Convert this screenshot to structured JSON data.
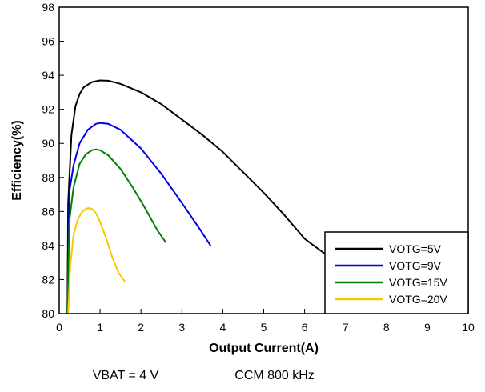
{
  "chart_data": {
    "type": "line",
    "xlabel": "Output Current(A)",
    "ylabel": "Efficiency(%)",
    "xlim": [
      0,
      10
    ],
    "ylim": [
      80,
      98
    ],
    "xticks": [
      "0",
      "1",
      "2",
      "3",
      "4",
      "5",
      "6",
      "7",
      "8",
      "9",
      "10"
    ],
    "yticks": [
      "80",
      "82",
      "84",
      "86",
      "88",
      "90",
      "92",
      "94",
      "96",
      "98"
    ],
    "grid": false,
    "legend_position": "bottom-right",
    "captions": [
      "VBAT = 4 V",
      "CCM 800 kHz"
    ],
    "series": [
      {
        "name": "VOTG=5V",
        "color": "#000000",
        "x": [
          0.2,
          0.22,
          0.3,
          0.4,
          0.5,
          0.6,
          0.8,
          1.0,
          1.2,
          1.5,
          2.0,
          2.5,
          3.0,
          3.5,
          4.0,
          4.5,
          5.0,
          5.5,
          6.0,
          6.5
        ],
        "y": [
          80,
          86.5,
          90.5,
          92.2,
          92.9,
          93.3,
          93.6,
          93.7,
          93.68,
          93.5,
          93.0,
          92.3,
          91.4,
          90.5,
          89.5,
          88.3,
          87.1,
          85.8,
          84.4,
          83.5
        ]
      },
      {
        "name": "VOTG=9V",
        "color": "#0000e6",
        "x": [
          0.2,
          0.25,
          0.35,
          0.5,
          0.7,
          0.9,
          1.0,
          1.2,
          1.5,
          2.0,
          2.5,
          3.0,
          3.4,
          3.7
        ],
        "y": [
          80,
          87.2,
          88.7,
          90.0,
          90.8,
          91.15,
          91.2,
          91.15,
          90.8,
          89.7,
          88.2,
          86.5,
          85.1,
          84.0
        ]
      },
      {
        "name": "VOTG=15V",
        "color": "#008000",
        "x": [
          0.2,
          0.25,
          0.35,
          0.5,
          0.65,
          0.8,
          0.9,
          1.0,
          1.2,
          1.5,
          1.8,
          2.1,
          2.4,
          2.6
        ],
        "y": [
          80,
          85.5,
          87.4,
          88.8,
          89.35,
          89.6,
          89.65,
          89.6,
          89.3,
          88.5,
          87.4,
          86.2,
          84.9,
          84.2
        ]
      },
      {
        "name": "VOTG=20V",
        "color": "#f5c800",
        "x": [
          0.22,
          0.27,
          0.35,
          0.45,
          0.55,
          0.65,
          0.72,
          0.8,
          0.9,
          1.0,
          1.15,
          1.3,
          1.45,
          1.6
        ],
        "y": [
          80,
          82.8,
          84.6,
          85.5,
          85.95,
          86.15,
          86.2,
          86.15,
          85.9,
          85.4,
          84.4,
          83.3,
          82.4,
          81.9
        ]
      }
    ]
  }
}
